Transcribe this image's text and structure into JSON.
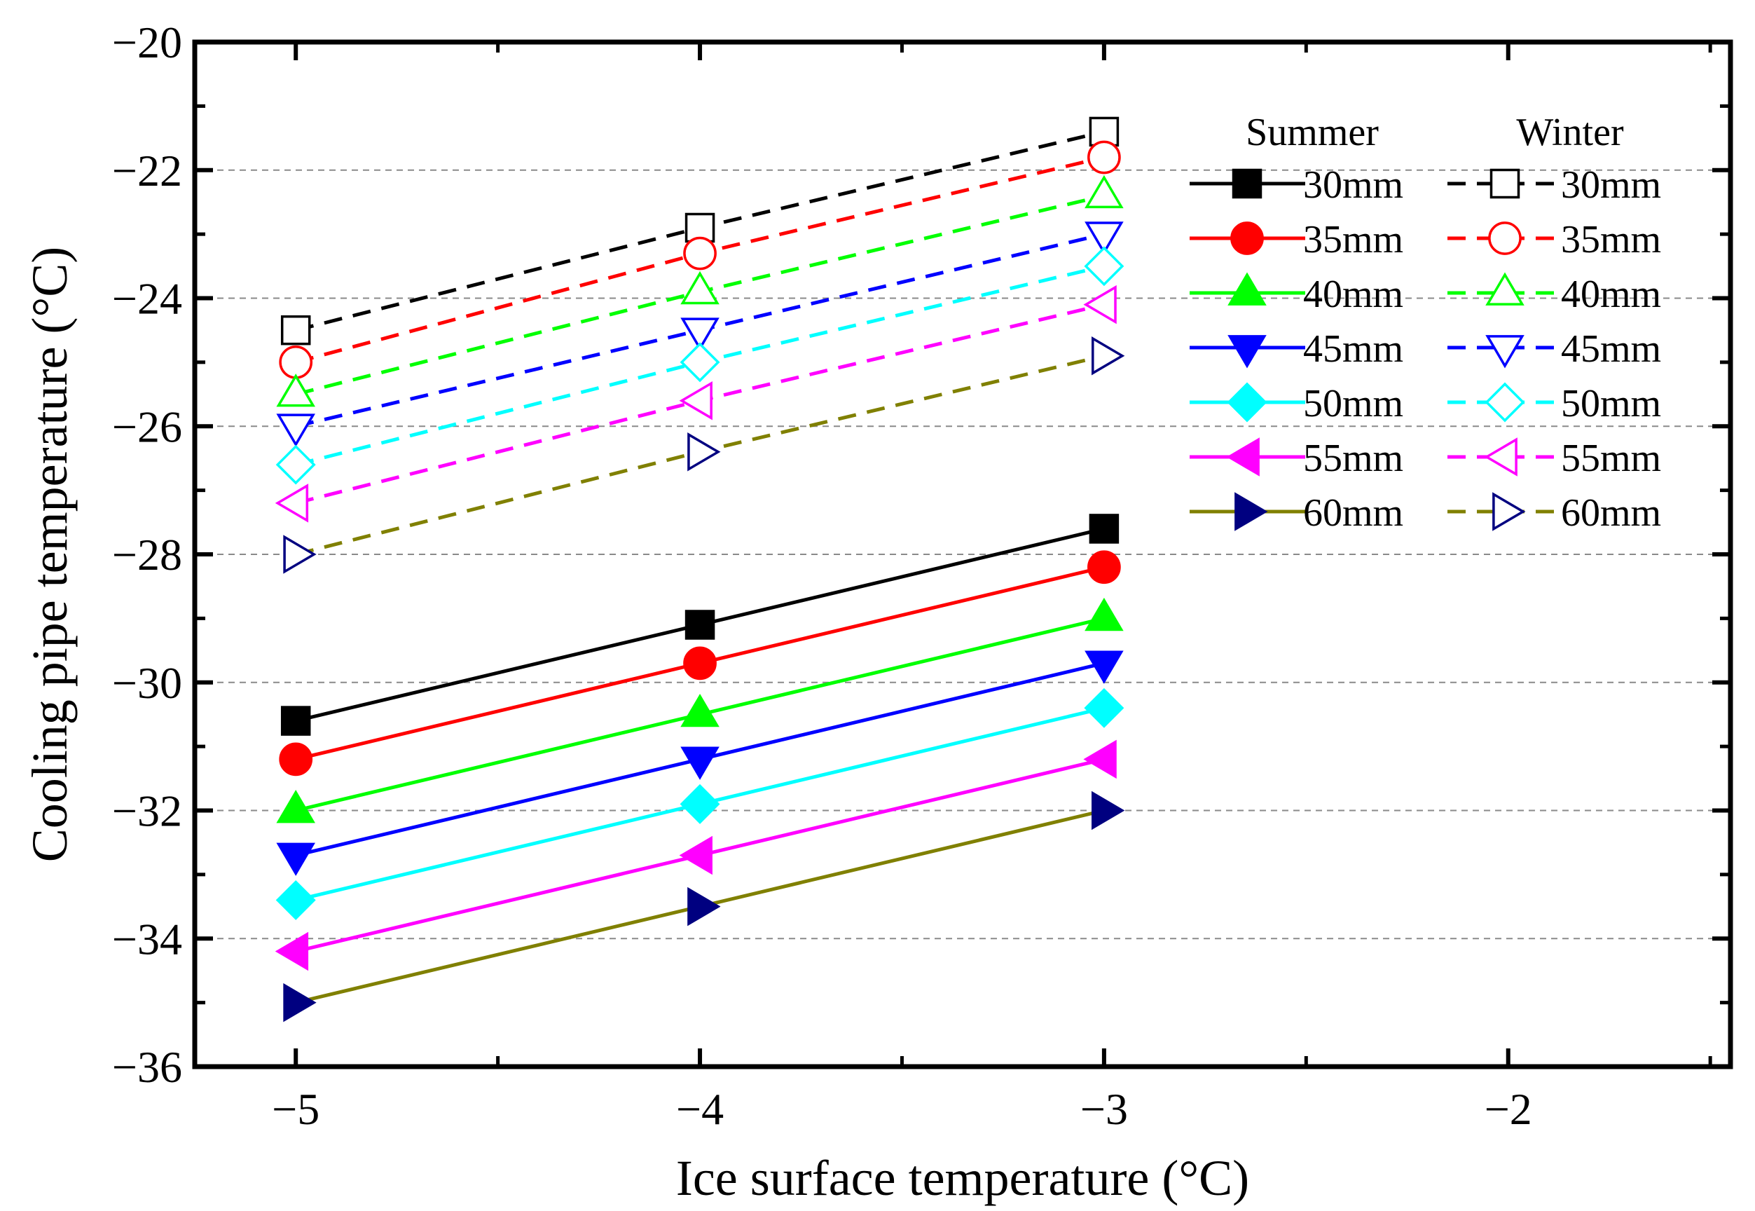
{
  "chart_data": {
    "type": "line",
    "xlabel": "Ice surface temperature (°C)",
    "ylabel": "Cooling pipe temperature (°C)",
    "xlim": [
      -5.25,
      -1.45
    ],
    "ylim": [
      -36,
      -20
    ],
    "xticks": [
      -5,
      -4,
      -3,
      -2
    ],
    "xtick_labels": [
      "−5",
      "−4",
      "−3",
      "−2"
    ],
    "yticks": [
      -36,
      -34,
      -32,
      -30,
      -28,
      -26,
      -24,
      -22,
      -20
    ],
    "ytick_labels": [
      "−36",
      "−34",
      "−32",
      "−30",
      "−28",
      "−26",
      "−24",
      "−22",
      "−20"
    ],
    "grid": "horizontal dashed",
    "legend_position": "top-right",
    "legend_groups": [
      "Summer",
      "Winter"
    ],
    "x": [
      -5,
      -4,
      -3
    ],
    "series": [
      {
        "name": "30mm",
        "group": "Summer",
        "color": "#000000",
        "marker": "square",
        "filled": true,
        "dashed": false,
        "values": [
          -30.6,
          -29.1,
          -27.6
        ]
      },
      {
        "name": "35mm",
        "group": "Summer",
        "color": "#ff0000",
        "marker": "circle",
        "filled": true,
        "dashed": false,
        "values": [
          -31.2,
          -29.7,
          -28.2
        ]
      },
      {
        "name": "40mm",
        "group": "Summer",
        "color": "#00ff00",
        "marker": "triangle-up",
        "filled": true,
        "dashed": false,
        "values": [
          -32.0,
          -30.5,
          -29.0
        ]
      },
      {
        "name": "45mm",
        "group": "Summer",
        "color": "#0000ff",
        "marker": "triangle-down",
        "filled": true,
        "dashed": false,
        "values": [
          -32.7,
          -31.2,
          -29.7
        ]
      },
      {
        "name": "50mm",
        "group": "Summer",
        "color": "#00ffff",
        "marker": "diamond",
        "filled": true,
        "dashed": false,
        "values": [
          -33.4,
          -31.9,
          -30.4
        ]
      },
      {
        "name": "55mm",
        "group": "Summer",
        "color": "#ff00ff",
        "marker": "triangle-left",
        "filled": true,
        "dashed": false,
        "values": [
          -34.2,
          -32.7,
          -31.2
        ]
      },
      {
        "name": "60mm",
        "group": "Summer",
        "color": "#808000",
        "marker_color": "#000080",
        "marker": "triangle-right",
        "filled": true,
        "dashed": false,
        "values": [
          -35.0,
          -33.5,
          -32.0
        ]
      },
      {
        "name": "30mm",
        "group": "Winter",
        "color": "#000000",
        "marker": "square",
        "filled": false,
        "dashed": true,
        "values": [
          -24.5,
          -22.9,
          -21.4
        ]
      },
      {
        "name": "35mm",
        "group": "Winter",
        "color": "#ff0000",
        "marker": "circle",
        "filled": false,
        "dashed": true,
        "values": [
          -25.0,
          -23.3,
          -21.8
        ]
      },
      {
        "name": "40mm",
        "group": "Winter",
        "color": "#00ff00",
        "marker": "triangle-up",
        "filled": false,
        "dashed": true,
        "values": [
          -25.5,
          -23.9,
          -22.4
        ]
      },
      {
        "name": "45mm",
        "group": "Winter",
        "color": "#0000ff",
        "marker": "triangle-down",
        "filled": false,
        "dashed": true,
        "values": [
          -26.0,
          -24.5,
          -23.0
        ]
      },
      {
        "name": "50mm",
        "group": "Winter",
        "color": "#00ffff",
        "marker": "diamond",
        "filled": false,
        "dashed": true,
        "values": [
          -26.6,
          -25.0,
          -23.5
        ]
      },
      {
        "name": "55mm",
        "group": "Winter",
        "color": "#ff00ff",
        "marker": "triangle-left",
        "filled": false,
        "dashed": true,
        "values": [
          -27.2,
          -25.6,
          -24.1
        ]
      },
      {
        "name": "60mm",
        "group": "Winter",
        "color": "#808000",
        "marker_color": "#000080",
        "marker": "triangle-right",
        "filled": false,
        "dashed": true,
        "values": [
          -28.0,
          -26.4,
          -24.9
        ]
      }
    ]
  }
}
